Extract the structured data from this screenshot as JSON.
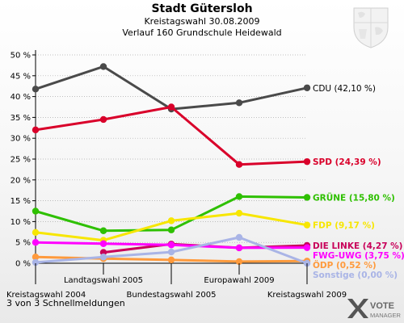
{
  "header": {
    "title": "Stadt Gütersloh",
    "subtitle": "Kreistagswahl 30.08.2009",
    "subtitle2": "Verlauf 160 Grundschule Heidewald"
  },
  "footer": {
    "note": "3 von 3 Schnellmeldungen",
    "logo_mark": "X",
    "logo_line1": "VOTE",
    "logo_line2": "MANAGER"
  },
  "colors": {
    "background_top": "#ffffff",
    "background_bottom": "#e9e9e9",
    "axis": "#000000",
    "grid": "#aaaaaa"
  },
  "chart_data": {
    "type": "line",
    "title": "Stadt Gütersloh",
    "ylim": [
      0,
      50
    ],
    "yticks": [
      "0 %",
      "5 %",
      "10 %",
      "15 %",
      "20 %",
      "25 %",
      "30 %",
      "35 %",
      "40 %",
      "45 %",
      "50 %"
    ],
    "grid": true,
    "categories": [
      "Kreistagswahl 2004",
      "Landtagswahl 2005",
      "Bundestagswahl 2005",
      "Europawahl 2009",
      "Kreistagswahl 2009"
    ],
    "category_positions_between": [
      "Landtagswahl 2005",
      "Bundestagswahl 2005",
      "Europawahl 2009"
    ],
    "x_points": 7,
    "series": [
      {
        "name": "CDU",
        "label": "CDU (42,10 %)",
        "color": "#4a4a4a",
        "values": [
          41.8,
          47.2,
          37.0,
          38.5,
          42.1
        ]
      },
      {
        "name": "SPD",
        "label": "SPD (24,39 %)",
        "color": "#d9002a",
        "values": [
          32.0,
          34.5,
          37.5,
          23.7,
          24.39
        ]
      },
      {
        "name": "GRÜNE",
        "label": "GRÜNE (15,80 %)",
        "color": "#2ec000",
        "values": [
          12.5,
          7.8,
          8.0,
          16.0,
          15.8
        ]
      },
      {
        "name": "FDP",
        "label": "FDP (9,17 %)",
        "color": "#f7e600",
        "values": [
          7.4,
          5.5,
          10.2,
          12.0,
          9.17
        ]
      },
      {
        "name": "DIE LINKE",
        "label": "DIE LINKE (4,27 %)",
        "color": "#c8005a",
        "values": [
          null,
          2.6,
          4.6,
          3.7,
          4.27
        ]
      },
      {
        "name": "FWG-UWG",
        "label": "FWG-UWG (3,75 %)",
        "color": "#ff00ff",
        "values": [
          5.0,
          4.7,
          4.4,
          3.7,
          3.75
        ]
      },
      {
        "name": "ÖDP",
        "label": "ÖDP (0,52 %)",
        "color": "#ff9a3c",
        "values": [
          1.5,
          1.1,
          0.8,
          0.4,
          0.52
        ]
      },
      {
        "name": "Sonstige",
        "label": "Sonstige (0,00 %)",
        "color": "#a9b4e6",
        "values": [
          0.2,
          1.5,
          2.7,
          6.2,
          0.0
        ]
      }
    ]
  }
}
